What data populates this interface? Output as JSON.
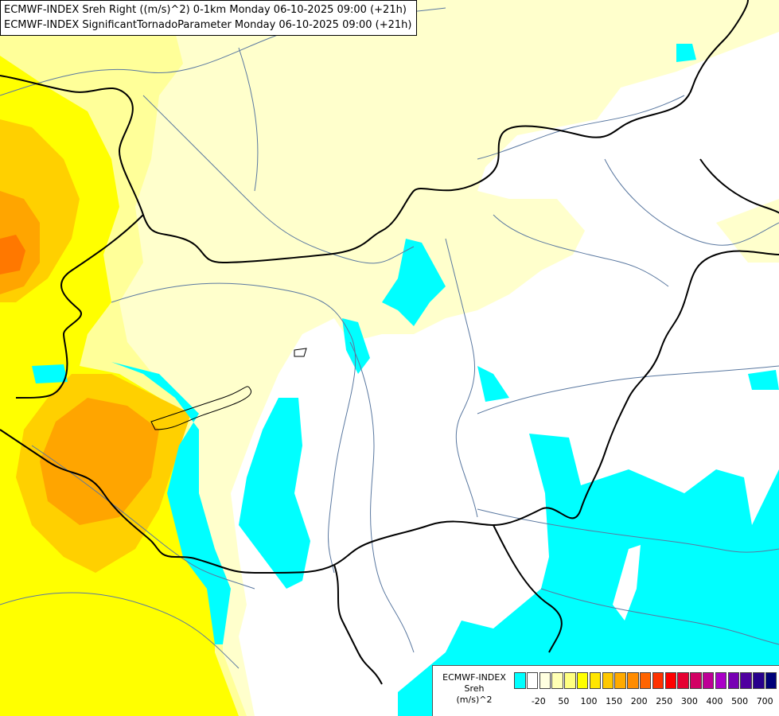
{
  "header": {
    "line1": "ECMWF-INDEX Sreh Right ((m/s)^2) 0-1km Monday 06-10-2025 09:00 (+21h)",
    "line2": "ECMWF-INDEX SignificantTornadoParameter Monday 06-10-2025 09:00 (+21h)"
  },
  "legend": {
    "title_line1": "ECMWF-INDEX",
    "title_line2": "Sreh",
    "title_line3": "(m/s)^2",
    "colors": [
      "#00ffff",
      "#ffffff",
      "#ffffe0",
      "#ffffb4",
      "#ffff80",
      "#ffff00",
      "#ffe600",
      "#ffc800",
      "#ffaa00",
      "#ff8c00",
      "#ff6400",
      "#ff3200",
      "#ff0000",
      "#e60032",
      "#d20064",
      "#be0096",
      "#aa00c8",
      "#7800b4",
      "#5000a0",
      "#28008c",
      "#000078"
    ],
    "ticks": [
      "-20",
      "50",
      "100",
      "150",
      "200",
      "250",
      "300",
      "400",
      "500",
      "700"
    ]
  },
  "map_colors": {
    "cyan": "#00ffff",
    "pale_yellow": "#ffffcc",
    "light_yellow": "#ffff99",
    "yellow": "#ffff00",
    "gold": "#ffd000",
    "orange": "#ffa500",
    "dark_orange": "#ff7800",
    "border": "#000000",
    "river": "#5a78a0"
  }
}
